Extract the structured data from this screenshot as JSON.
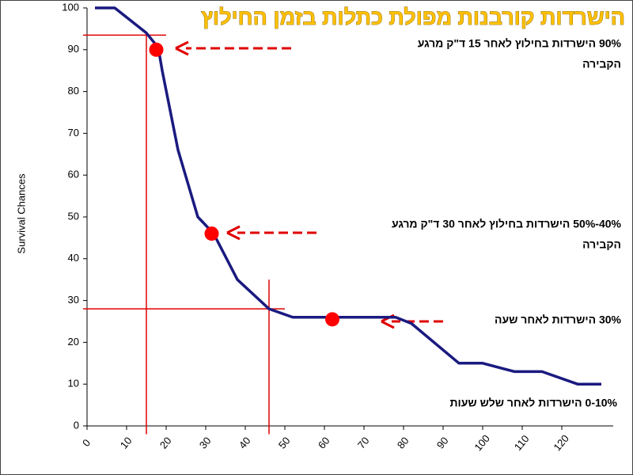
{
  "chart_data": {
    "type": "line",
    "title": "הישרדות קורבנות מפולת כתלות בזמן החילוץ",
    "y_label": "Survival Chances",
    "xlim": [
      0,
      133
    ],
    "ylim": [
      0,
      100
    ],
    "xticks": [
      0,
      10,
      20,
      30,
      40,
      50,
      60,
      70,
      80,
      90,
      100,
      110,
      120
    ],
    "yticks": [
      0,
      10,
      20,
      30,
      40,
      50,
      60,
      70,
      80,
      90,
      100
    ],
    "x": [
      2,
      7,
      15,
      18,
      19,
      23,
      28,
      32,
      38,
      46,
      52,
      78,
      82,
      94,
      100,
      108,
      115,
      124,
      130
    ],
    "series": [
      {
        "color": "#1a1a80",
        "values": [
          100,
          100,
          94,
          90.5,
          85,
          66,
          50,
          46,
          35,
          28,
          26,
          26,
          24.5,
          15,
          15,
          13,
          13,
          10,
          10
        ]
      }
    ],
    "markers": {
      "color": "#ff0000",
      "x": [
        17.5,
        31.5,
        62
      ],
      "values": [
        90,
        46,
        25.5
      ]
    },
    "reference_color": "#e00000",
    "reference_lines": [
      {
        "y": 93.5,
        "x_range": [
          0,
          20
        ]
      },
      {
        "x": 15,
        "y_range": [
          -2,
          93.75
        ]
      },
      {
        "y": 28,
        "x_range": [
          0,
          50
        ]
      },
      {
        "x": 46,
        "y_range": [
          -2,
          35
        ]
      }
    ],
    "annotations": [
      {
        "lines": [
          "90% הישרדות בחילוץ לאחר 15 ד\"ק מרגע",
          "הקבירה"
        ]
      },
      {
        "lines": [
          "40%-50% הישרדות בחילוץ לאחר 30 ד\"ק מרגע",
          "הקבירה"
        ]
      },
      {
        "lines": [
          "30% הישרדות לאחר שעה"
        ]
      },
      {
        "lines": [
          "0-10% הישרדות לאחר שלש שעות"
        ]
      }
    ]
  }
}
